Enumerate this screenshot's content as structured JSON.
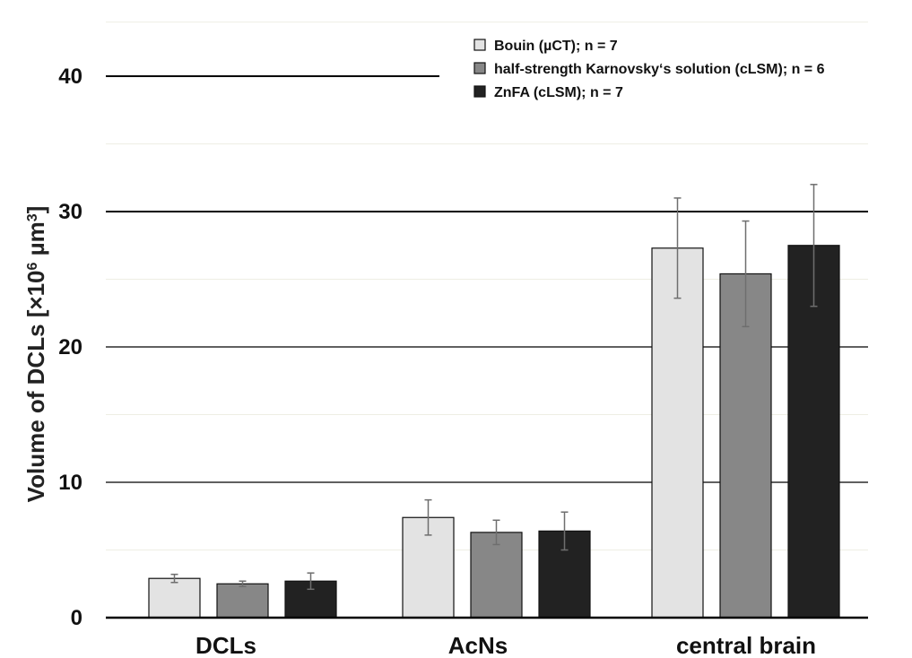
{
  "chart_data": {
    "type": "bar",
    "title": "",
    "xlabel": "",
    "ylabel": "Volume of DCLs [×10",
    "ylabel_exp": "6",
    "ylabel_tail": " µm",
    "ylabel_unit_exp": "3",
    "ylabel_close": "]",
    "ylim": [
      0,
      44
    ],
    "yticks": [
      0,
      10,
      20,
      30,
      40
    ],
    "ytick_labels": [
      "0",
      "10",
      "20",
      "30",
      "40"
    ],
    "grid": true,
    "legend_position": "top-right",
    "categories": [
      "DCLs",
      "AcNs",
      "central brain"
    ],
    "series": [
      {
        "name": "Bouin (µCT); n = 7",
        "color": "#e3e3e3",
        "values": [
          2.9,
          7.4,
          27.3
        ],
        "errors": [
          0.3,
          1.3,
          3.7
        ]
      },
      {
        "name": "half-strength Karnovsky‘s solution (cLSM); n = 6",
        "color": "#878787",
        "values": [
          2.5,
          6.3,
          25.4
        ],
        "errors": [
          0.2,
          0.9,
          3.9
        ]
      },
      {
        "name": "ZnFA (cLSM); n = 7",
        "color": "#222222",
        "values": [
          2.7,
          6.4,
          27.5
        ],
        "errors": [
          0.6,
          1.4,
          4.5
        ]
      }
    ]
  }
}
